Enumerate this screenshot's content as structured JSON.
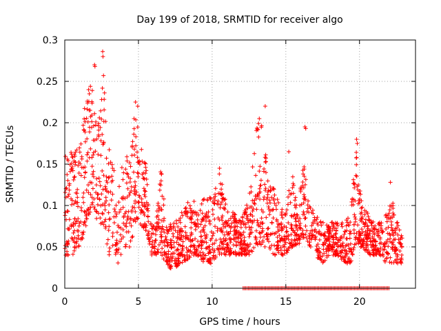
{
  "chart_data": {
    "type": "scatter",
    "title": "Day 199 of 2018, SRMTID for receiver algo",
    "xlabel": "GPS time / hours",
    "ylabel": "SRMTID / TECUs",
    "xlim": [
      0,
      23.8
    ],
    "ylim": [
      0,
      0.3
    ],
    "xticks": [
      0,
      5,
      10,
      15,
      20
    ],
    "yticks": [
      0,
      0.05,
      0.1,
      0.15,
      0.2,
      0.25,
      0.3
    ],
    "xtick_labels": [
      "0",
      "5",
      "10",
      "15",
      "20"
    ],
    "ytick_labels": [
      "0",
      "0.05",
      "0.1",
      "0.15",
      "0.2",
      "0.25",
      "0.3"
    ],
    "grid": true,
    "legend": "none",
    "marker": "plus",
    "color": "#ff0000",
    "series": [
      {
        "name": "SRMTID",
        "envelope": [
          [
            0.0,
            0.04,
            0.16
          ],
          [
            0.5,
            0.04,
            0.17
          ],
          [
            1.0,
            0.05,
            0.17
          ],
          [
            1.2,
            0.06,
            0.2
          ],
          [
            1.5,
            0.08,
            0.24
          ],
          [
            1.7,
            0.09,
            0.22
          ],
          [
            1.8,
            0.1,
            0.27
          ],
          [
            2.0,
            0.09,
            0.22
          ],
          [
            2.2,
            0.08,
            0.2
          ],
          [
            2.4,
            0.08,
            0.21
          ],
          [
            2.6,
            0.07,
            0.28
          ],
          [
            2.8,
            0.06,
            0.2
          ],
          [
            3.0,
            0.04,
            0.17
          ],
          [
            3.3,
            0.05,
            0.15
          ],
          [
            3.6,
            0.03,
            0.12
          ],
          [
            4.0,
            0.05,
            0.16
          ],
          [
            4.5,
            0.05,
            0.16
          ],
          [
            4.8,
            0.08,
            0.22
          ],
          [
            5.0,
            0.08,
            0.19
          ],
          [
            5.5,
            0.07,
            0.15
          ],
          [
            5.8,
            0.04,
            0.08
          ],
          [
            6.2,
            0.04,
            0.08
          ],
          [
            6.5,
            0.04,
            0.15
          ],
          [
            6.9,
            0.03,
            0.08
          ],
          [
            7.3,
            0.02,
            0.08
          ],
          [
            7.8,
            0.03,
            0.09
          ],
          [
            8.2,
            0.03,
            0.1
          ],
          [
            8.6,
            0.04,
            0.11
          ],
          [
            9.0,
            0.04,
            0.1
          ],
          [
            9.5,
            0.03,
            0.11
          ],
          [
            10.0,
            0.03,
            0.11
          ],
          [
            10.5,
            0.04,
            0.14
          ],
          [
            11.0,
            0.04,
            0.1
          ],
          [
            11.5,
            0.04,
            0.09
          ],
          [
            12.0,
            0.04,
            0.09
          ],
          [
            12.5,
            0.04,
            0.11
          ],
          [
            13.0,
            0.05,
            0.2
          ],
          [
            13.4,
            0.05,
            0.21
          ],
          [
            13.8,
            0.05,
            0.13
          ],
          [
            14.2,
            0.04,
            0.12
          ],
          [
            14.6,
            0.04,
            0.1
          ],
          [
            15.0,
            0.04,
            0.09
          ],
          [
            15.4,
            0.05,
            0.15
          ],
          [
            15.8,
            0.05,
            0.09
          ],
          [
            16.2,
            0.06,
            0.16
          ],
          [
            16.6,
            0.05,
            0.1
          ],
          [
            17.0,
            0.04,
            0.09
          ],
          [
            17.5,
            0.03,
            0.08
          ],
          [
            18.0,
            0.04,
            0.08
          ],
          [
            18.5,
            0.04,
            0.08
          ],
          [
            19.0,
            0.03,
            0.08
          ],
          [
            19.4,
            0.03,
            0.1
          ],
          [
            19.8,
            0.05,
            0.17
          ],
          [
            20.2,
            0.05,
            0.1
          ],
          [
            20.6,
            0.04,
            0.09
          ],
          [
            21.0,
            0.04,
            0.08
          ],
          [
            21.4,
            0.04,
            0.08
          ],
          [
            21.8,
            0.03,
            0.09
          ],
          [
            22.2,
            0.03,
            0.12
          ],
          [
            22.6,
            0.03,
            0.08
          ],
          [
            22.9,
            0.03,
            0.07
          ]
        ],
        "spikes": [
          [
            1.62,
            0.24
          ],
          [
            1.67,
            0.235
          ],
          [
            1.74,
            0.244
          ],
          [
            2.02,
            0.27
          ],
          [
            2.05,
            0.268
          ],
          [
            2.57,
            0.286
          ],
          [
            2.59,
            0.28
          ],
          [
            2.63,
            0.257
          ],
          [
            2.7,
            0.236
          ],
          [
            2.5,
            0.228
          ],
          [
            4.8,
            0.225
          ],
          [
            4.95,
            0.22
          ],
          [
            4.7,
            0.205
          ],
          [
            13.6,
            0.22
          ],
          [
            13.2,
            0.205
          ],
          [
            16.3,
            0.195
          ],
          [
            16.35,
            0.193
          ],
          [
            19.8,
            0.18
          ],
          [
            19.85,
            0.175
          ],
          [
            15.2,
            0.165
          ],
          [
            22.1,
            0.128
          ],
          [
            10.5,
            0.145
          ]
        ],
        "zero_points_range": [
          12.1,
          22.0
        ],
        "zero_points_value": 0
      }
    ]
  }
}
